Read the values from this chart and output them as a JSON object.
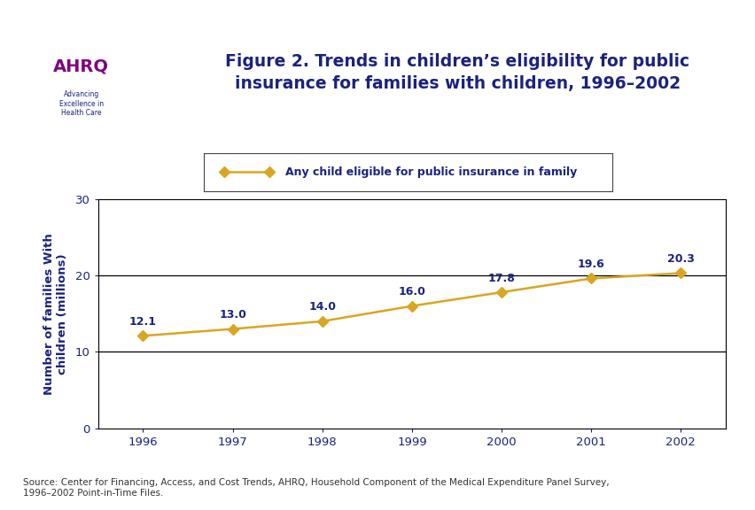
{
  "title": "Figure 2. Trends in children’s eligibility for public\ninsurance for families with children, 1996–2002",
  "years": [
    1996,
    1997,
    1998,
    1999,
    2000,
    2001,
    2002
  ],
  "values": [
    12.1,
    13.0,
    14.0,
    16.0,
    17.8,
    19.6,
    20.3
  ],
  "labels": [
    "12.1",
    "13.0",
    "14.0",
    "16.0",
    "17.8",
    "19.6",
    "20.3"
  ],
  "ylabel": "Number of families With\nchildren (millions)",
  "ylim": [
    0,
    30
  ],
  "yticks": [
    0,
    10,
    20,
    30
  ],
  "xlim": [
    1995.5,
    2002.5
  ],
  "line_color": "#DAA520",
  "marker_color": "#DAA520",
  "legend_label": "Any child eligible for public insurance in family",
  "title_color": "#1A237E",
  "label_color": "#1A237E",
  "ylabel_color": "#1A237E",
  "tick_color": "#1A237E",
  "source_text": "Source: Center for Financing, Access, and Cost Trends, AHRQ, Household Component of the Medical Expenditure Panel Survey,\n1996–2002 Point-in-Time Files.",
  "bg_color": "#FFFFFF",
  "border_color": "#1A237E",
  "grid_color": "#000000",
  "horizontal_lines": [
    10,
    20
  ],
  "header_bg": "#FFFFFF",
  "logo_bg": "#4169B0",
  "outer_border_color": "#1A237E"
}
